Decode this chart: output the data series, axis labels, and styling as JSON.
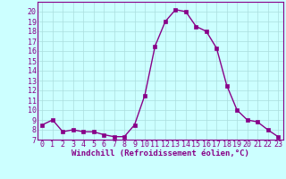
{
  "x": [
    0,
    1,
    2,
    3,
    4,
    5,
    6,
    7,
    8,
    9,
    10,
    11,
    12,
    13,
    14,
    15,
    16,
    17,
    18,
    19,
    20,
    21,
    22,
    23
  ],
  "y": [
    8.5,
    9.0,
    7.8,
    8.0,
    7.8,
    7.8,
    7.5,
    7.3,
    7.3,
    8.5,
    11.5,
    16.5,
    19.0,
    20.2,
    20.0,
    18.5,
    18.0,
    16.3,
    12.5,
    10.0,
    9.0,
    8.8,
    8.0,
    7.3
  ],
  "line_color": "#880088",
  "marker": "s",
  "marker_size": 2.2,
  "bg_color": "#ccffff",
  "grid_color": "#aadddd",
  "xlabel": "Windchill (Refroidissement éolien,°C)",
  "ylim": [
    7,
    21
  ],
  "xlim": [
    -0.5,
    23.5
  ],
  "yticks": [
    7,
    8,
    9,
    10,
    11,
    12,
    13,
    14,
    15,
    16,
    17,
    18,
    19,
    20
  ],
  "xticks": [
    0,
    1,
    2,
    3,
    4,
    5,
    6,
    7,
    8,
    9,
    10,
    11,
    12,
    13,
    14,
    15,
    16,
    17,
    18,
    19,
    20,
    21,
    22,
    23
  ],
  "xlabel_fontsize": 6.5,
  "tick_fontsize": 6.0,
  "line_width": 1.0,
  "border_color": "#880088"
}
